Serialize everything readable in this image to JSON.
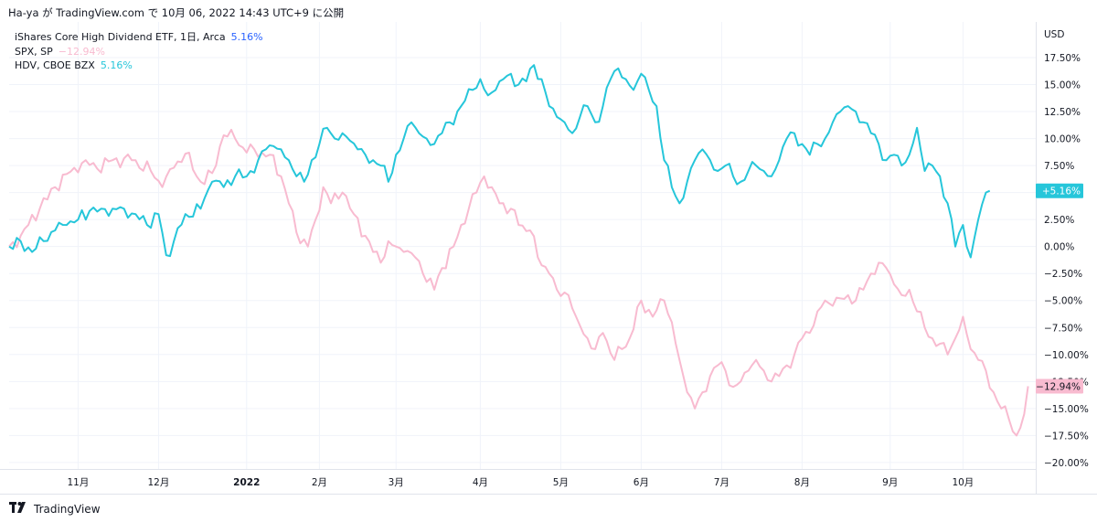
{
  "header": {
    "text": "Ha-ya が TradingView.com で 10月 06, 2022 14:43 UTC+9 に公開"
  },
  "legend": {
    "main_label": "iShares Core High Dividend ETF, 1日, Arca",
    "main_value": "5.16%",
    "main_value_color": "#2962ff",
    "items": [
      {
        "label": "SPX, SP",
        "value": "−12.94%",
        "color": "#f8bbd0",
        "label_color": "#131722"
      },
      {
        "label": "HDV, CBOE BZX",
        "value": "5.16%",
        "color": "#26c6da",
        "label_color": "#131722"
      }
    ]
  },
  "footer": {
    "logo_icon": "tradingview-logo-icon",
    "text": "TradingView"
  },
  "chart_data": {
    "type": "line",
    "title": "",
    "currency_label": "USD",
    "y_unit": "%",
    "ylim": [
      -20.6,
      20.8
    ],
    "grid": true,
    "legend_position": "top-left",
    "x_tick_labels": [
      "11月",
      "12月",
      "2022",
      "2月",
      "3月",
      "4月",
      "5月",
      "6月",
      "7月",
      "8月",
      "9月",
      "10月"
    ],
    "x_tick_indices": [
      18,
      39,
      62,
      81,
      101,
      123,
      144,
      165,
      186,
      207,
      230,
      249
    ],
    "y_ticks": [
      {
        "value": 17.5,
        "label": "17.50%"
      },
      {
        "value": 15.0,
        "label": "15.00%"
      },
      {
        "value": 12.5,
        "label": "12.50%"
      },
      {
        "value": 10.0,
        "label": "10.00%"
      },
      {
        "value": 7.5,
        "label": "7.50%"
      },
      {
        "value": 5.0,
        "label": "5.00%"
      },
      {
        "value": 2.5,
        "label": "2.50%"
      },
      {
        "value": 0.0,
        "label": "0.00%"
      },
      {
        "value": -2.5,
        "label": "−2.50%"
      },
      {
        "value": -5.0,
        "label": "−5.00%"
      },
      {
        "value": -7.5,
        "label": "−7.50%"
      },
      {
        "value": -10.0,
        "label": "−10.00%"
      },
      {
        "value": -12.5,
        "label": "−12.50%"
      },
      {
        "value": -15.0,
        "label": "−15.00%"
      },
      {
        "value": -17.5,
        "label": "−17.50%"
      },
      {
        "value": -20.0,
        "label": "−20.00%"
      }
    ],
    "series": [
      {
        "name": "SPX, SP",
        "color": "#f8bbd0",
        "last_label": "−12.94%",
        "label_bg": "#f8bbd0",
        "label_text_color": "#131722",
        "anchors": [
          [
            0,
            0.0
          ],
          [
            3,
            1.0
          ],
          [
            8,
            3.5
          ],
          [
            12,
            5.5
          ],
          [
            17,
            7.3
          ],
          [
            20,
            8.0
          ],
          [
            23,
            7.2
          ],
          [
            27,
            8.0
          ],
          [
            32,
            8.0
          ],
          [
            37,
            7.0
          ],
          [
            40,
            5.5
          ],
          [
            43,
            7.3
          ],
          [
            46,
            8.6
          ],
          [
            50,
            6.0
          ],
          [
            53,
            6.8
          ],
          [
            56,
            10.3
          ],
          [
            59,
            10.0
          ],
          [
            62,
            8.7
          ],
          [
            64,
            9.0
          ],
          [
            66,
            8.7
          ],
          [
            68,
            8.5
          ],
          [
            71,
            6.5
          ],
          [
            73,
            4.0
          ],
          [
            75,
            1.3
          ],
          [
            78,
            0.0
          ],
          [
            80,
            2.5
          ],
          [
            82,
            5.5
          ],
          [
            84,
            4.0
          ],
          [
            87,
            5.0
          ],
          [
            90,
            3.0
          ],
          [
            93,
            1.0
          ],
          [
            95,
            -0.5
          ],
          [
            97,
            -1.5
          ],
          [
            99,
            0.5
          ],
          [
            101,
            0.0
          ],
          [
            103,
            -0.5
          ],
          [
            106,
            -1.0
          ],
          [
            108,
            -2.5
          ],
          [
            111,
            -4.0
          ],
          [
            113,
            -2.0
          ],
          [
            116,
            0.0
          ],
          [
            118,
            2.0
          ],
          [
            120,
            3.5
          ],
          [
            122,
            5.0
          ],
          [
            124,
            6.5
          ],
          [
            126,
            5.5
          ],
          [
            128,
            4.0
          ],
          [
            131,
            3.5
          ],
          [
            133,
            2.0
          ],
          [
            136,
            1.5
          ],
          [
            138,
            -1.0
          ],
          [
            141,
            -2.5
          ],
          [
            143,
            -4.0
          ],
          [
            146,
            -4.5
          ],
          [
            148,
            -6.5
          ],
          [
            151,
            -8.5
          ],
          [
            153,
            -9.5
          ],
          [
            155,
            -8.0
          ],
          [
            158,
            -10.5
          ],
          [
            160,
            -9.5
          ],
          [
            162,
            -8.5
          ],
          [
            165,
            -5.0
          ],
          [
            168,
            -6.5
          ],
          [
            171,
            -5.0
          ],
          [
            173,
            -7.0
          ],
          [
            175,
            -10.5
          ],
          [
            177,
            -13.5
          ],
          [
            179,
            -15.0
          ],
          [
            181,
            -13.5
          ],
          [
            183,
            -12.0
          ],
          [
            185,
            -11.0
          ],
          [
            187,
            -11.5
          ],
          [
            189,
            -13.0
          ],
          [
            191,
            -12.5
          ],
          [
            193,
            -11.5
          ],
          [
            195,
            -10.5
          ],
          [
            197,
            -11.5
          ],
          [
            199,
            -12.5
          ],
          [
            201,
            -12.0
          ],
          [
            203,
            -11.0
          ],
          [
            205,
            -10.0
          ],
          [
            207,
            -8.5
          ],
          [
            209,
            -8.0
          ],
          [
            211,
            -6.0
          ],
          [
            213,
            -5.0
          ],
          [
            215,
            -5.5
          ],
          [
            217,
            -4.8
          ],
          [
            219,
            -4.5
          ],
          [
            221,
            -5.0
          ],
          [
            223,
            -4.0
          ],
          [
            225,
            -2.5
          ],
          [
            227,
            -1.5
          ],
          [
            229,
            -2.0
          ],
          [
            231,
            -3.5
          ],
          [
            233,
            -4.5
          ],
          [
            235,
            -4.0
          ],
          [
            237,
            -6.0
          ],
          [
            239,
            -7.5
          ],
          [
            241,
            -8.5
          ],
          [
            243,
            -9.0
          ],
          [
            245,
            -10.0
          ],
          [
            247,
            -8.5
          ],
          [
            249,
            -6.5
          ],
          [
            251,
            -9.5
          ],
          [
            253,
            -10.5
          ],
          [
            255,
            -11.5
          ],
          [
            257,
            -13.5
          ],
          [
            259,
            -15.0
          ],
          [
            261,
            -16.0
          ],
          [
            263,
            -17.5
          ],
          [
            265,
            -15.5
          ],
          [
            266,
            -12.94
          ]
        ]
      },
      {
        "name": "HDV, CBOE BZX",
        "color": "#26c6da",
        "last_label": "+5.16%",
        "label_bg": "#26c6da",
        "label_text_color": "#ffffff",
        "anchors": [
          [
            0,
            0.0
          ],
          [
            3,
            0.5
          ],
          [
            6,
            -0.5
          ],
          [
            9,
            0.5
          ],
          [
            12,
            1.5
          ],
          [
            15,
            2.0
          ],
          [
            18,
            2.5
          ],
          [
            21,
            3.3
          ],
          [
            24,
            3.5
          ],
          [
            27,
            3.5
          ],
          [
            30,
            3.5
          ],
          [
            33,
            3.0
          ],
          [
            36,
            2.0
          ],
          [
            39,
            3.0
          ],
          [
            41,
            -0.8
          ],
          [
            43,
            0.5
          ],
          [
            46,
            3.0
          ],
          [
            50,
            3.5
          ],
          [
            53,
            6.0
          ],
          [
            56,
            5.5
          ],
          [
            59,
            6.5
          ],
          [
            62,
            6.5
          ],
          [
            65,
            8.0
          ],
          [
            67,
            9.0
          ],
          [
            69,
            9.3
          ],
          [
            71,
            9.0
          ],
          [
            73,
            8.0
          ],
          [
            75,
            6.5
          ],
          [
            77,
            6.0
          ],
          [
            79,
            8.0
          ],
          [
            81,
            9.5
          ],
          [
            83,
            11.0
          ],
          [
            85,
            10.0
          ],
          [
            87,
            10.5
          ],
          [
            89,
            9.8
          ],
          [
            91,
            9.0
          ],
          [
            93,
            8.5
          ],
          [
            95,
            8.0
          ],
          [
            97,
            7.5
          ],
          [
            99,
            6.0
          ],
          [
            101,
            8.5
          ],
          [
            103,
            10.0
          ],
          [
            105,
            11.5
          ],
          [
            107,
            10.5
          ],
          [
            109,
            10.0
          ],
          [
            111,
            9.5
          ],
          [
            113,
            10.5
          ],
          [
            115,
            11.5
          ],
          [
            117,
            12.5
          ],
          [
            119,
            13.5
          ],
          [
            121,
            14.5
          ],
          [
            123,
            15.5
          ],
          [
            125,
            14.0
          ],
          [
            127,
            14.5
          ],
          [
            129,
            15.5
          ],
          [
            131,
            16.0
          ],
          [
            133,
            15.0
          ],
          [
            135,
            15.3
          ],
          [
            137,
            16.8
          ],
          [
            139,
            15.5
          ],
          [
            141,
            13.0
          ],
          [
            143,
            12.0
          ],
          [
            145,
            11.5
          ],
          [
            147,
            10.5
          ],
          [
            149,
            12.0
          ],
          [
            151,
            13.0
          ],
          [
            153,
            11.5
          ],
          [
            155,
            13.0
          ],
          [
            157,
            15.5
          ],
          [
            159,
            16.5
          ],
          [
            161,
            15.5
          ],
          [
            163,
            14.5
          ],
          [
            165,
            16.0
          ],
          [
            167,
            14.5
          ],
          [
            169,
            13.0
          ],
          [
            171,
            8.0
          ],
          [
            173,
            5.5
          ],
          [
            175,
            4.0
          ],
          [
            177,
            6.0
          ],
          [
            179,
            8.0
          ],
          [
            181,
            9.0
          ],
          [
            183,
            8.0
          ],
          [
            185,
            7.0
          ],
          [
            187,
            7.5
          ],
          [
            189,
            6.5
          ],
          [
            191,
            6.0
          ],
          [
            193,
            7.0
          ],
          [
            195,
            7.5
          ],
          [
            197,
            7.0
          ],
          [
            199,
            6.5
          ],
          [
            201,
            8.0
          ],
          [
            203,
            10.0
          ],
          [
            205,
            10.5
          ],
          [
            207,
            9.5
          ],
          [
            209,
            8.5
          ],
          [
            211,
            9.5
          ],
          [
            213,
            10.0
          ],
          [
            215,
            11.5
          ],
          [
            217,
            12.5
          ],
          [
            219,
            13.0
          ],
          [
            221,
            12.5
          ],
          [
            223,
            11.5
          ],
          [
            225,
            10.5
          ],
          [
            227,
            9.5
          ],
          [
            229,
            8.0
          ],
          [
            231,
            8.5
          ],
          [
            233,
            7.5
          ],
          [
            235,
            8.5
          ],
          [
            237,
            11.0
          ],
          [
            239,
            7.0
          ],
          [
            241,
            7.5
          ],
          [
            243,
            6.5
          ],
          [
            245,
            4.0
          ],
          [
            247,
            0.0
          ],
          [
            249,
            2.0
          ],
          [
            251,
            -1.0
          ],
          [
            253,
            2.5
          ],
          [
            255,
            5.0
          ],
          [
            256,
            5.16
          ]
        ]
      }
    ]
  }
}
